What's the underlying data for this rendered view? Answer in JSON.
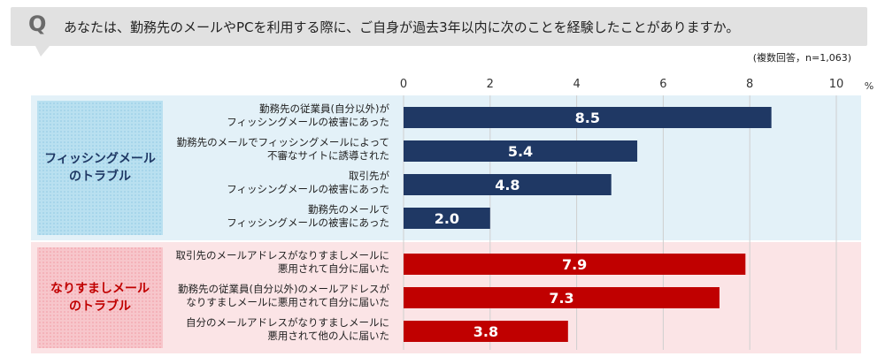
{
  "header": {
    "q_letter": "Q",
    "question": "あなたは、勤務先のメールやPCを利用する際に、ご自身が過去3年以内に次のことを経験したことがありますか。",
    "note": "(複数回答，n=1,063)"
  },
  "chart_data": {
    "type": "bar",
    "orientation": "horizontal",
    "unit": "%",
    "xlim": [
      0,
      10
    ],
    "ticks": [
      "0",
      "2",
      "4",
      "6",
      "8",
      "10"
    ],
    "grid": true,
    "groups": [
      {
        "name": "フィッシングメール\nのトラブル",
        "label_lines": [
          "フィッシングメール",
          "のトラブル"
        ],
        "background": "#e3f1f8",
        "label_color": "#1f3864",
        "bar_color": "#1f3864",
        "items": [
          {
            "label": [
              "勤務先の従業員(自分以外)が",
              "フィッシングメールの被害にあった"
            ],
            "value": 8.5
          },
          {
            "label": [
              "勤務先のメールでフィッシングメールによって",
              "不審なサイトに誘導された"
            ],
            "value": 5.4
          },
          {
            "label": [
              "取引先が",
              "フィッシングメールの被害にあった"
            ],
            "value": 4.8
          },
          {
            "label": [
              "勤務先のメールで",
              "フィッシングメールの被害にあった"
            ],
            "value": 2.0
          }
        ]
      },
      {
        "name": "なりすましメール\nのトラブル",
        "label_lines": [
          "なりすましメール",
          "のトラブル"
        ],
        "background": "#fbe4e6",
        "label_color": "#c00000",
        "bar_color": "#c00000",
        "items": [
          {
            "label": [
              "取引先のメールアドレスがなりすましメールに",
              "悪用されて自分に届いた"
            ],
            "value": 7.9
          },
          {
            "label": [
              "勤務先の従業員(自分以外)のメールアドレスが",
              "なりすましメールに悪用されて自分に届いた"
            ],
            "value": 7.3
          },
          {
            "label": [
              "自分のメールアドレスがなりすましメールに",
              "悪用されて他の人に届いた"
            ],
            "value": 3.8
          }
        ]
      }
    ]
  }
}
